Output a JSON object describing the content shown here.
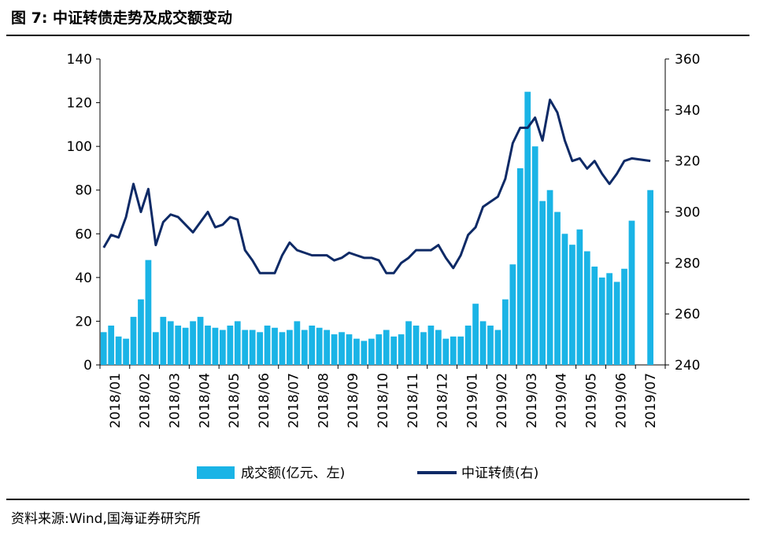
{
  "title": "图 7:  中证转债走势及成交额变动",
  "source": "资料来源:Wind,国海证券研究所",
  "colors": {
    "bar": "#1ab4e6",
    "line": "#0e2a66"
  },
  "chart_data": {
    "type": "bar+line",
    "categories": [
      "2018/01",
      "2018/02",
      "2018/03",
      "2018/04",
      "2018/05",
      "2018/06",
      "2018/07",
      "2018/08",
      "2018/09",
      "2018/10",
      "2018/11",
      "2018/12",
      "2019/01",
      "2019/02",
      "2019/03",
      "2019/04",
      "2019/05",
      "2019/06",
      "2019/07"
    ],
    "y_left": {
      "range": [
        0,
        140
      ],
      "ticks": [
        "0",
        "20",
        "40",
        "60",
        "80",
        "100",
        "120",
        "140"
      ]
    },
    "y_right": {
      "range": [
        240,
        360
      ],
      "ticks": [
        "240",
        "260",
        "280",
        "300",
        "320",
        "340",
        "360"
      ]
    },
    "legend": {
      "position": "bottom"
    },
    "series": [
      {
        "name": "成交额(亿元、左)",
        "type": "bar",
        "axis": "left",
        "x": [
          "2018/01",
          "2018/01",
          "2018/01",
          "2018/01",
          "2018/02",
          "2018/02",
          "2018/02",
          "2018/02",
          "2018/03",
          "2018/03",
          "2018/03",
          "2018/03",
          "2018/04",
          "2018/04",
          "2018/04",
          "2018/04",
          "2018/05",
          "2018/05",
          "2018/05",
          "2018/05",
          "2018/06",
          "2018/06",
          "2018/06",
          "2018/06",
          "2018/07",
          "2018/07",
          "2018/07",
          "2018/07",
          "2018/08",
          "2018/08",
          "2018/08",
          "2018/08",
          "2018/09",
          "2018/09",
          "2018/09",
          "2018/09",
          "2018/10",
          "2018/10",
          "2018/10",
          "2018/10",
          "2018/11",
          "2018/11",
          "2018/11",
          "2018/11",
          "2018/12",
          "2018/12",
          "2018/12",
          "2018/12",
          "2019/01",
          "2019/01",
          "2019/01",
          "2019/01",
          "2019/02",
          "2019/02",
          "2019/02",
          "2019/02",
          "2019/03",
          "2019/03",
          "2019/03",
          "2019/03",
          "2019/04",
          "2019/04",
          "2019/04",
          "2019/04",
          "2019/05",
          "2019/05",
          "2019/05",
          "2019/05",
          "2019/06",
          "2019/06",
          "2019/06",
          "2019/06",
          "2019/07"
        ],
        "values": [
          15,
          18,
          13,
          12,
          22,
          30,
          48,
          15,
          22,
          20,
          18,
          17,
          20,
          22,
          18,
          17,
          16,
          18,
          20,
          16,
          16,
          15,
          18,
          17,
          15,
          16,
          20,
          16,
          18,
          17,
          16,
          14,
          15,
          14,
          12,
          11,
          12,
          14,
          16,
          13,
          14,
          20,
          18,
          15,
          18,
          16,
          12,
          13,
          13,
          18,
          28,
          20,
          18,
          16,
          30,
          46,
          90,
          125,
          100,
          75,
          80,
          70,
          60,
          55,
          62,
          52,
          45,
          40,
          42,
          38,
          44,
          66,
          80
        ]
      },
      {
        "name": "中证转债(右)",
        "type": "line",
        "axis": "right",
        "x": [
          "2018/01",
          "2018/01",
          "2018/01",
          "2018/01",
          "2018/02",
          "2018/02",
          "2018/02",
          "2018/02",
          "2018/03",
          "2018/03",
          "2018/03",
          "2018/03",
          "2018/04",
          "2018/04",
          "2018/04",
          "2018/04",
          "2018/05",
          "2018/05",
          "2018/05",
          "2018/05",
          "2018/06",
          "2018/06",
          "2018/06",
          "2018/06",
          "2018/07",
          "2018/07",
          "2018/07",
          "2018/07",
          "2018/08",
          "2018/08",
          "2018/08",
          "2018/08",
          "2018/09",
          "2018/09",
          "2018/09",
          "2018/09",
          "2018/10",
          "2018/10",
          "2018/10",
          "2018/10",
          "2018/11",
          "2018/11",
          "2018/11",
          "2018/11",
          "2018/12",
          "2018/12",
          "2018/12",
          "2018/12",
          "2019/01",
          "2019/01",
          "2019/01",
          "2019/01",
          "2019/02",
          "2019/02",
          "2019/02",
          "2019/02",
          "2019/03",
          "2019/03",
          "2019/03",
          "2019/03",
          "2019/04",
          "2019/04",
          "2019/04",
          "2019/04",
          "2019/05",
          "2019/05",
          "2019/05",
          "2019/05",
          "2019/06",
          "2019/06",
          "2019/06",
          "2019/06",
          "2019/07"
        ],
        "values": [
          286,
          291,
          290,
          298,
          311,
          300,
          309,
          287,
          296,
          299,
          298,
          295,
          292,
          296,
          300,
          294,
          295,
          298,
          297,
          285,
          281,
          276,
          276,
          276,
          283,
          288,
          285,
          284,
          283,
          283,
          283,
          281,
          282,
          284,
          283,
          282,
          282,
          281,
          276,
          276,
          280,
          282,
          285,
          285,
          285,
          287,
          282,
          278,
          283,
          291,
          294,
          302,
          304,
          306,
          313,
          327,
          333,
          333,
          337,
          328,
          344,
          339,
          328,
          320,
          321,
          317,
          320,
          315,
          311,
          315,
          320,
          321,
          320
        ]
      }
    ]
  }
}
